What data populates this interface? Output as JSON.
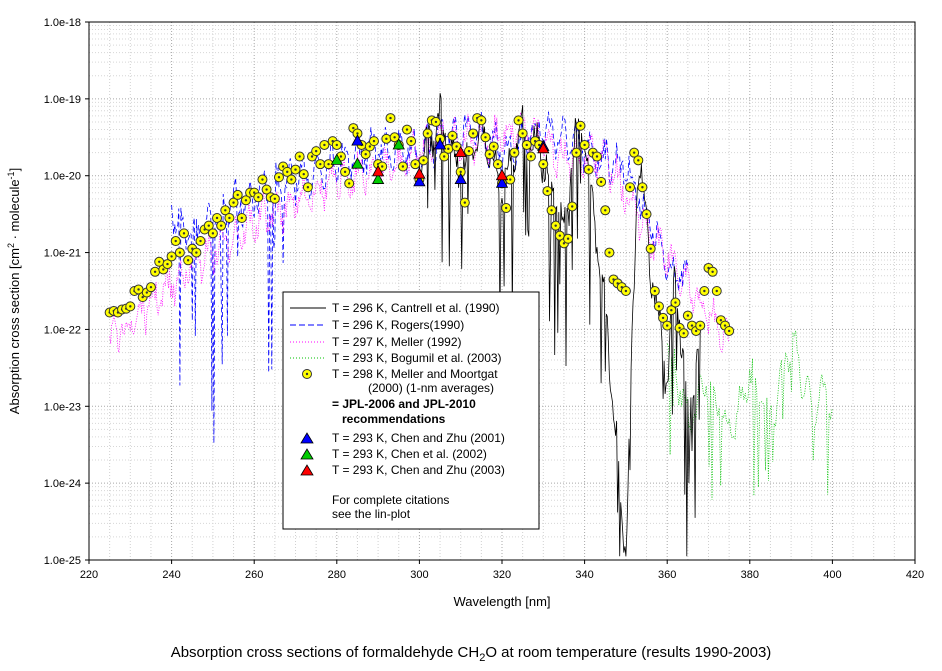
{
  "chart_data": {
    "type": "line",
    "title": "",
    "xlabel": "Wavelength [nm]",
    "ylabel_parts": [
      "Absorption cross section [cm",
      "2",
      " · molecule",
      "-1",
      "]"
    ],
    "xlim": [
      220,
      420
    ],
    "ylim_log10": [
      -25,
      -18
    ],
    "xticks": [
      220,
      240,
      260,
      280,
      300,
      320,
      340,
      360,
      380,
      400,
      420
    ],
    "yticks": [
      "1.0e-25",
      "1.0e-24",
      "1.0e-23",
      "1.0e-22",
      "1.0e-21",
      "1.0e-20",
      "1.0e-19",
      "1.0e-18"
    ],
    "grid": true,
    "legend_position": "center-left",
    "series": [
      {
        "name": "T = 296 K, Cantrell et al. (1990)",
        "style": "solid",
        "color": "#000000",
        "envelope": [
          [
            300,
            -19.6
          ],
          [
            305,
            -19.1
          ],
          [
            310,
            -19.8
          ],
          [
            315,
            -19.2
          ],
          [
            320,
            -20.0
          ],
          [
            325,
            -19.1
          ],
          [
            330,
            -19.6
          ],
          [
            335,
            -20.5
          ],
          [
            338,
            -19.2
          ],
          [
            340,
            -19.4
          ],
          [
            345,
            -21.5
          ],
          [
            350,
            -24.8
          ],
          [
            353,
            -19.4
          ],
          [
            356,
            -21.0
          ],
          [
            360,
            -22.5
          ],
          [
            362,
            -21.0
          ],
          [
            365,
            -23.0
          ],
          [
            368,
            -22.0
          ]
        ]
      },
      {
        "name": "T = 296 K, Rogers(1990)",
        "style": "dashed",
        "color": "#0000ff",
        "envelope": [
          [
            240,
            -20.3
          ],
          [
            245,
            -20.6
          ],
          [
            250,
            -20.4
          ],
          [
            255,
            -20.2
          ],
          [
            260,
            -20.1
          ],
          [
            265,
            -20.0
          ],
          [
            270,
            -19.9
          ],
          [
            280,
            -19.6
          ],
          [
            290,
            -19.5
          ],
          [
            300,
            -19.5
          ],
          [
            310,
            -19.2
          ],
          [
            320,
            -19.5
          ],
          [
            330,
            -19.2
          ],
          [
            340,
            -19.5
          ],
          [
            350,
            -19.7
          ],
          [
            360,
            -21.0
          ],
          [
            365,
            -21.2
          ]
        ]
      },
      {
        "name": "T = 297 K, Meller (1992)",
        "style": "dotted",
        "color": "#ff00ff",
        "envelope": [
          [
            225,
            -22.0
          ],
          [
            235,
            -21.5
          ],
          [
            245,
            -21.0
          ],
          [
            255,
            -20.6
          ],
          [
            265,
            -20.3
          ],
          [
            275,
            -20.0
          ],
          [
            285,
            -19.8
          ],
          [
            295,
            -19.7
          ],
          [
            305,
            -19.3
          ],
          [
            315,
            -19.4
          ],
          [
            325,
            -19.2
          ],
          [
            335,
            -19.6
          ],
          [
            345,
            -19.6
          ],
          [
            355,
            -20.5
          ],
          [
            365,
            -21.3
          ],
          [
            375,
            -22.0
          ]
        ]
      },
      {
        "name": "T = 293 K, Bogumil et al. (2003)",
        "style": "dotted",
        "color": "#00c000",
        "envelope": [
          [
            360,
            -22.0
          ],
          [
            365,
            -23.0
          ],
          [
            370,
            -22.5
          ],
          [
            375,
            -23.2
          ],
          [
            380,
            -22.4
          ],
          [
            385,
            -23.0
          ],
          [
            390,
            -22.0
          ],
          [
            395,
            -22.8
          ],
          [
            400,
            -22.7
          ]
        ]
      },
      {
        "name": "T = 298 K, Meller  and Moortgat",
        "name_line2": "(2000) (1-nm averages)",
        "style": "marker-circle",
        "color": "#ffff00",
        "points": [
          [
            225,
            -21.78
          ],
          [
            226,
            -21.76
          ],
          [
            227,
            -21.78
          ],
          [
            228,
            -21.74
          ],
          [
            229,
            -21.73
          ],
          [
            230,
            -21.7
          ],
          [
            231,
            -21.5
          ],
          [
            232,
            -21.48
          ],
          [
            233,
            -21.58
          ],
          [
            234,
            -21.52
          ],
          [
            235,
            -21.45
          ],
          [
            236,
            -21.25
          ],
          [
            237,
            -21.12
          ],
          [
            238,
            -21.22
          ],
          [
            239,
            -21.15
          ],
          [
            240,
            -21.05
          ],
          [
            241,
            -20.85
          ],
          [
            242,
            -21.0
          ],
          [
            243,
            -20.75
          ],
          [
            244,
            -21.1
          ],
          [
            245,
            -20.95
          ],
          [
            246,
            -21.0
          ],
          [
            247,
            -20.85
          ],
          [
            248,
            -20.7
          ],
          [
            249,
            -20.65
          ],
          [
            250,
            -20.75
          ],
          [
            251,
            -20.55
          ],
          [
            252,
            -20.65
          ],
          [
            253,
            -20.45
          ],
          [
            254,
            -20.55
          ],
          [
            255,
            -20.35
          ],
          [
            256,
            -20.25
          ],
          [
            257,
            -20.55
          ],
          [
            258,
            -20.32
          ],
          [
            259,
            -20.22
          ],
          [
            260,
            -20.22
          ],
          [
            261,
            -20.28
          ],
          [
            262,
            -20.05
          ],
          [
            263,
            -20.18
          ],
          [
            264,
            -20.28
          ],
          [
            265,
            -20.3
          ],
          [
            266,
            -20.02
          ],
          [
            267,
            -19.88
          ],
          [
            268,
            -19.95
          ],
          [
            269,
            -20.05
          ],
          [
            270,
            -19.92
          ],
          [
            271,
            -19.75
          ],
          [
            272,
            -19.98
          ],
          [
            273,
            -20.15
          ],
          [
            274,
            -19.75
          ],
          [
            275,
            -19.68
          ],
          [
            276,
            -19.85
          ],
          [
            277,
            -19.6
          ],
          [
            278,
            -19.85
          ],
          [
            279,
            -19.55
          ],
          [
            280,
            -19.6
          ],
          [
            281,
            -19.75
          ],
          [
            282,
            -19.95
          ],
          [
            283,
            -20.1
          ],
          [
            284,
            -19.38
          ],
          [
            285,
            -19.45
          ],
          [
            286,
            -19.6
          ],
          [
            287,
            -19.72
          ],
          [
            288,
            -19.62
          ],
          [
            289,
            -19.55
          ],
          [
            290,
            -19.85
          ],
          [
            291,
            -19.88
          ],
          [
            292,
            -19.52
          ],
          [
            293,
            -19.25
          ],
          [
            294,
            -19.5
          ],
          [
            295,
            -19.6
          ],
          [
            296,
            -19.88
          ],
          [
            297,
            -19.4
          ],
          [
            298,
            -19.55
          ],
          [
            299,
            -19.85
          ],
          [
            300,
            -20.05
          ],
          [
            301,
            -19.8
          ],
          [
            302,
            -19.45
          ],
          [
            303,
            -19.28
          ],
          [
            304,
            -19.3
          ],
          [
            305,
            -19.52
          ],
          [
            306,
            -19.75
          ],
          [
            307,
            -19.65
          ],
          [
            308,
            -19.48
          ],
          [
            309,
            -19.62
          ],
          [
            310,
            -19.95
          ],
          [
            311,
            -20.35
          ],
          [
            312,
            -19.68
          ],
          [
            313,
            -19.45
          ],
          [
            314,
            -19.25
          ],
          [
            315,
            -19.28
          ],
          [
            316,
            -19.5
          ],
          [
            317,
            -19.72
          ],
          [
            318,
            -19.62
          ],
          [
            319,
            -19.85
          ],
          [
            320,
            -20.1
          ],
          [
            321,
            -20.42
          ],
          [
            322,
            -20.05
          ],
          [
            323,
            -19.7
          ],
          [
            324,
            -19.28
          ],
          [
            325,
            -19.45
          ],
          [
            326,
            -19.6
          ],
          [
            327,
            -19.75
          ],
          [
            328,
            -19.55
          ],
          [
            329,
            -19.6
          ],
          [
            330,
            -19.85
          ],
          [
            331,
            -20.2
          ],
          [
            332,
            -20.45
          ],
          [
            333,
            -20.65
          ],
          [
            334,
            -20.78
          ],
          [
            335,
            -20.88
          ],
          [
            336,
            -20.82
          ],
          [
            337,
            -20.4
          ],
          [
            338,
            -19.7
          ],
          [
            339,
            -19.35
          ],
          [
            340,
            -19.6
          ],
          [
            341,
            -19.92
          ],
          [
            342,
            -19.7
          ],
          [
            343,
            -19.75
          ],
          [
            344,
            -20.08
          ],
          [
            345,
            -20.45
          ],
          [
            346,
            -21.0
          ],
          [
            347,
            -21.35
          ],
          [
            348,
            -21.4
          ],
          [
            349,
            -21.45
          ],
          [
            350,
            -21.5
          ],
          [
            351,
            -20.15
          ],
          [
            352,
            -19.7
          ],
          [
            353,
            -19.8
          ],
          [
            354,
            -20.15
          ],
          [
            355,
            -20.5
          ],
          [
            356,
            -20.95
          ],
          [
            357,
            -21.5
          ],
          [
            358,
            -21.7
          ],
          [
            359,
            -21.85
          ],
          [
            360,
            -21.95
          ],
          [
            361,
            -21.75
          ],
          [
            362,
            -21.65
          ],
          [
            363,
            -21.98
          ],
          [
            364,
            -22.05
          ],
          [
            365,
            -21.82
          ],
          [
            366,
            -21.95
          ],
          [
            367,
            -22.02
          ],
          [
            368,
            -21.95
          ],
          [
            369,
            -21.5
          ],
          [
            370,
            -21.2
          ],
          [
            371,
            -21.25
          ],
          [
            372,
            -21.5
          ],
          [
            373,
            -21.88
          ],
          [
            374,
            -21.95
          ],
          [
            375,
            -22.02
          ]
        ]
      },
      {
        "name": "T = 293 K, Chen and Zhu (2001)",
        "style": "marker-triangle",
        "color": "#0000ff",
        "points": [
          [
            285,
            -19.55
          ],
          [
            300,
            -20.08
          ],
          [
            305,
            -19.6
          ],
          [
            310,
            -20.05
          ],
          [
            320,
            -20.1
          ],
          [
            330,
            -19.62
          ]
        ]
      },
      {
        "name": "T = 293 K, Chen et al. (2002)",
        "style": "marker-triangle",
        "color": "#00cc00",
        "points": [
          [
            280,
            -19.8
          ],
          [
            285,
            -19.85
          ],
          [
            290,
            -20.05
          ],
          [
            295,
            -19.6
          ]
        ]
      },
      {
        "name": "T = 293 K, Chen and Zhu (2003)",
        "style": "marker-triangle",
        "color": "#ff0000",
        "points": [
          [
            290,
            -19.95
          ],
          [
            300,
            -19.98
          ],
          [
            310,
            -19.7
          ],
          [
            320,
            -20.0
          ],
          [
            330,
            -19.65
          ]
        ]
      }
    ],
    "legend_extra": {
      "equals_line1": "= JPL-2006 and JPL-2010",
      "equals_line2": "recommendations",
      "note_line1": "For complete citations",
      "note_line2": "see the lin-plot"
    }
  },
  "caption_parts": [
    "Absorption cross sections of formaldehyde CH",
    "2",
    "O at room temperature (results 1990-2003)"
  ]
}
